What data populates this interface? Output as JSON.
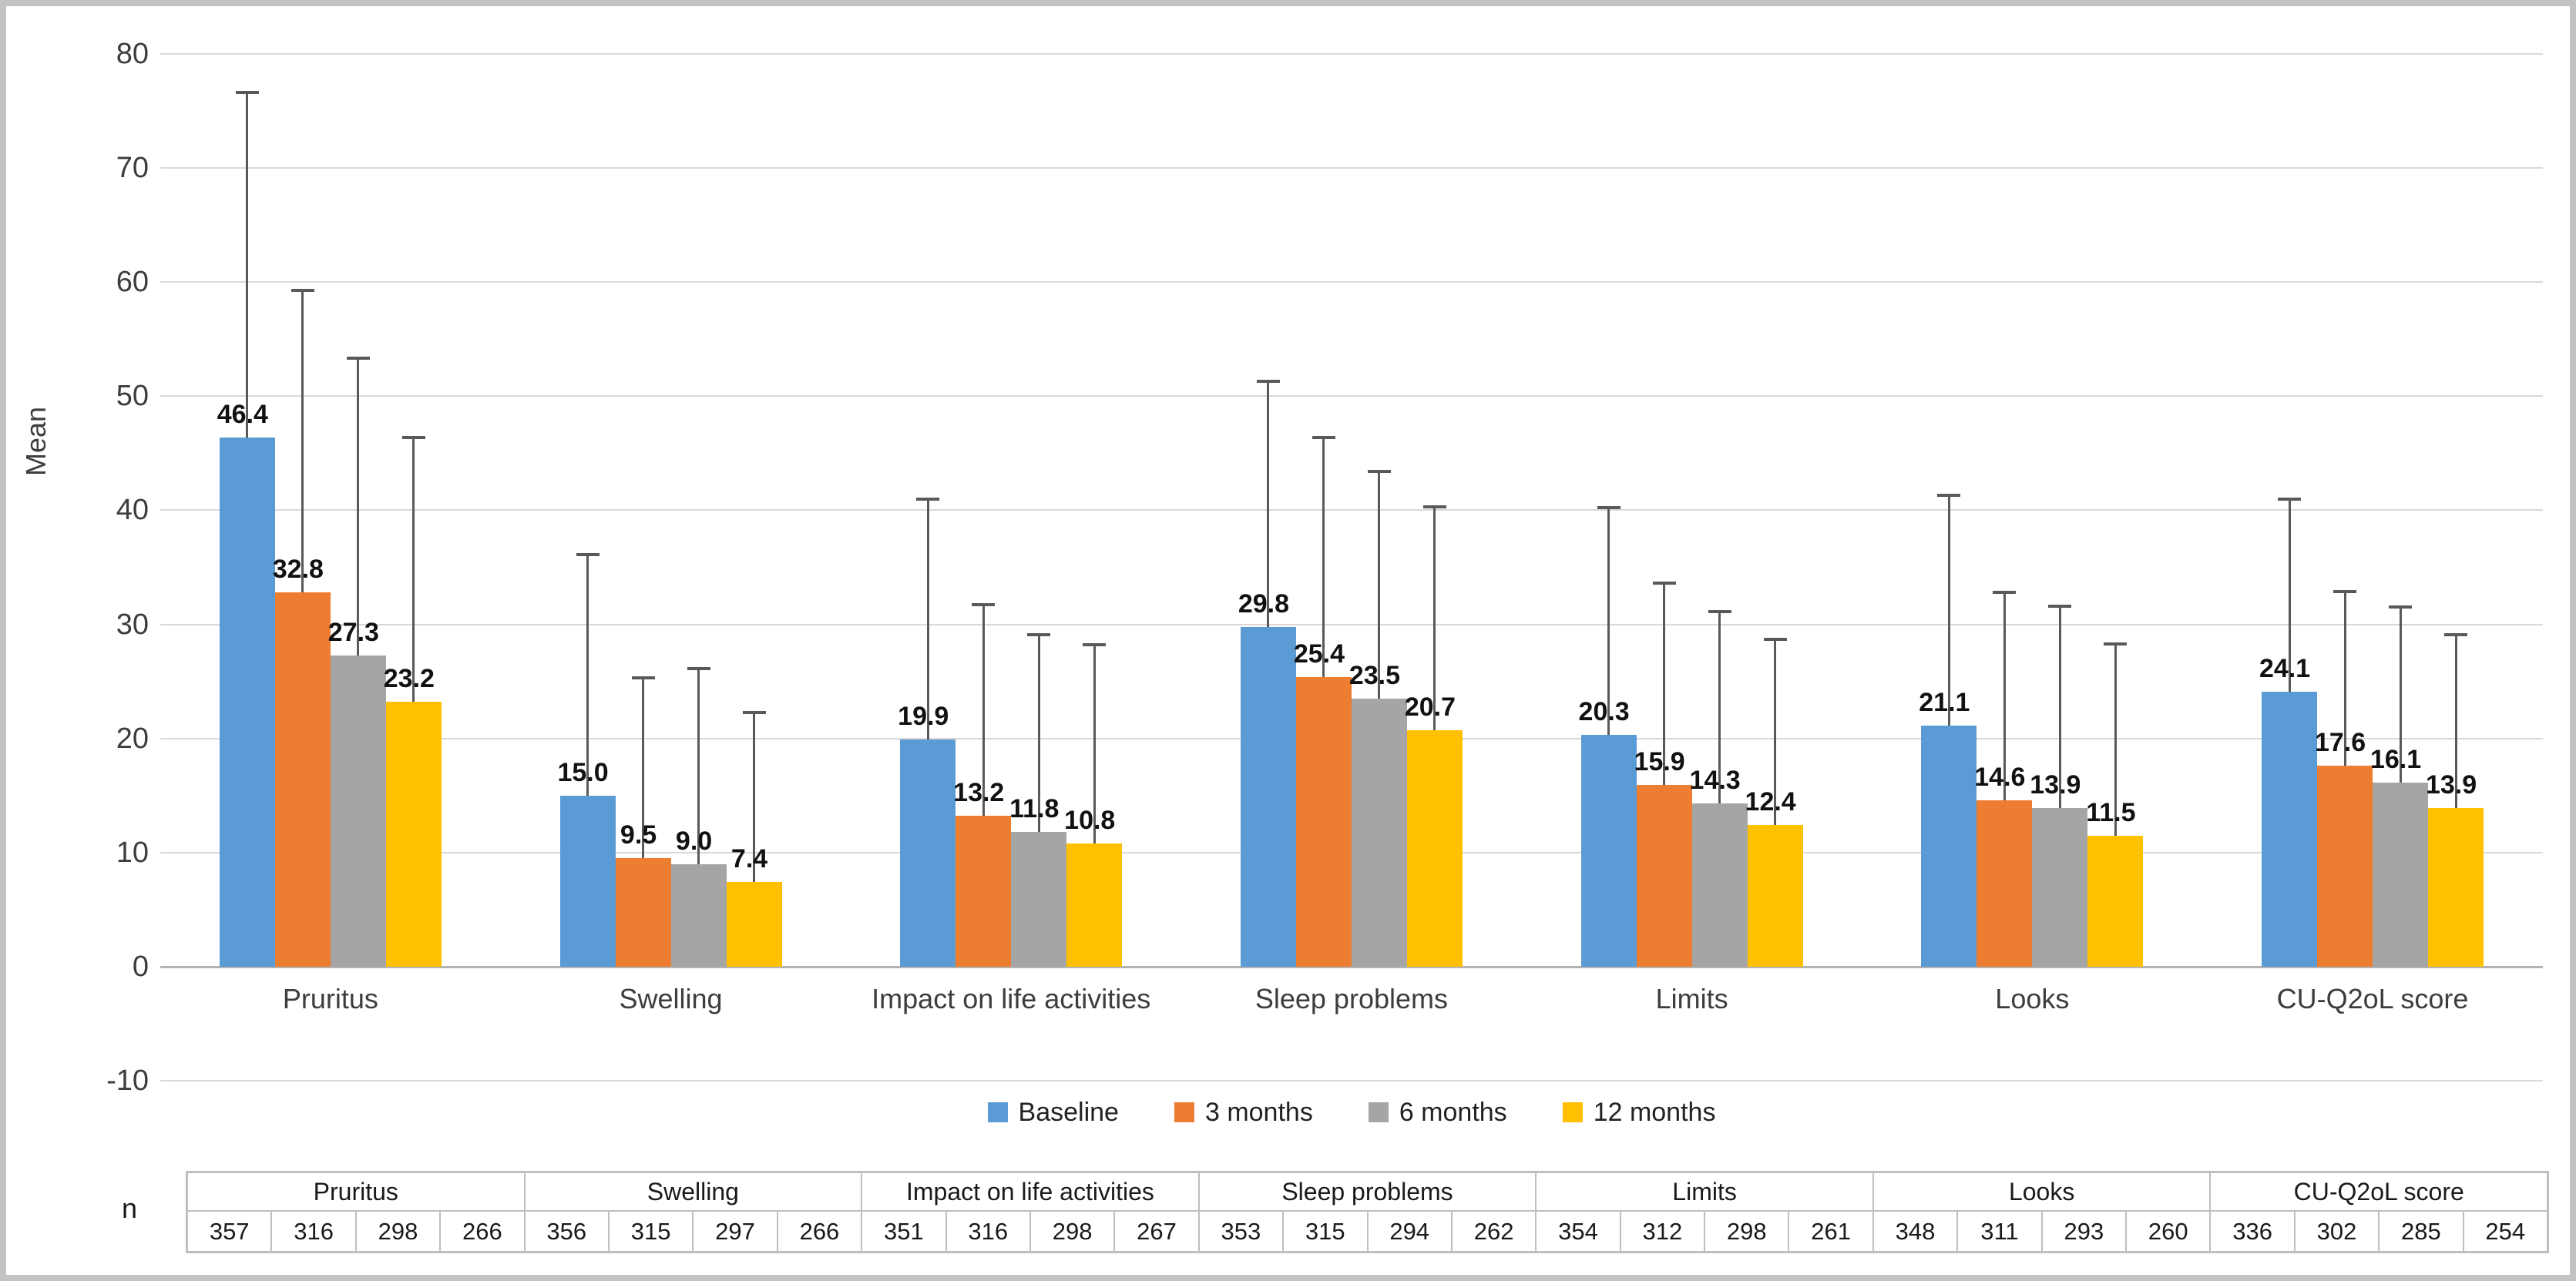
{
  "figure": {
    "background": "#ffffff",
    "border_color": "#c3c3c3"
  },
  "chart_data": {
    "type": "bar",
    "title": "",
    "xlabel": "",
    "ylabel": "Mean",
    "ylim": [
      -10,
      80
    ],
    "ytick_step": 10,
    "grid": true,
    "legend_position": "bottom",
    "error_bars": "upper_whisker",
    "categories": [
      "Pruritus",
      "Swelling",
      "Impact on life activities",
      "Sleep problems",
      "Limits",
      "Looks",
      "CU-Q2oL score"
    ],
    "series": [
      {
        "name": "Baseline",
        "color": "#5B9BD5",
        "values": [
          46.4,
          15.0,
          19.9,
          29.8,
          20.3,
          21.1,
          24.1
        ],
        "error_top": [
          76.6,
          36.1,
          41.0,
          51.3,
          40.2,
          41.3,
          41.0
        ]
      },
      {
        "name": "3 months",
        "color": "#ED7D31",
        "values": [
          32.8,
          9.5,
          13.2,
          25.4,
          15.9,
          14.6,
          17.6
        ],
        "error_top": [
          59.3,
          25.3,
          31.7,
          46.4,
          33.6,
          32.8,
          32.9
        ]
      },
      {
        "name": "6 months",
        "color": "#A5A5A5",
        "values": [
          27.3,
          9.0,
          11.8,
          23.5,
          14.3,
          13.9,
          16.1
        ],
        "error_top": [
          53.3,
          26.1,
          29.1,
          43.4,
          31.1,
          31.6,
          31.5
        ]
      },
      {
        "name": "12 months",
        "color": "#FFC000",
        "values": [
          23.2,
          7.4,
          10.8,
          20.7,
          12.4,
          11.5,
          13.9
        ],
        "error_top": [
          46.4,
          22.3,
          28.2,
          40.3,
          28.7,
          28.3,
          29.1
        ]
      }
    ],
    "grid_color": "#d9d9d9",
    "axis_line_color": "#b3b3b3",
    "whisker_color": "#595959"
  },
  "n_table": {
    "row_label": "n",
    "groups": [
      {
        "label": "Pruritus",
        "values": [
          357,
          316,
          298,
          266
        ]
      },
      {
        "label": "Swelling",
        "values": [
          356,
          315,
          297,
          266
        ]
      },
      {
        "label": "Impact on life activities",
        "values": [
          351,
          316,
          298,
          267
        ]
      },
      {
        "label": "Sleep problems",
        "values": [
          353,
          315,
          294,
          262
        ]
      },
      {
        "label": "Limits",
        "values": [
          354,
          312,
          298,
          261
        ]
      },
      {
        "label": "Looks",
        "values": [
          348,
          311,
          293,
          260
        ]
      },
      {
        "label": "CU-Q2oL score",
        "values": [
          336,
          302,
          285,
          254
        ]
      }
    ]
  }
}
